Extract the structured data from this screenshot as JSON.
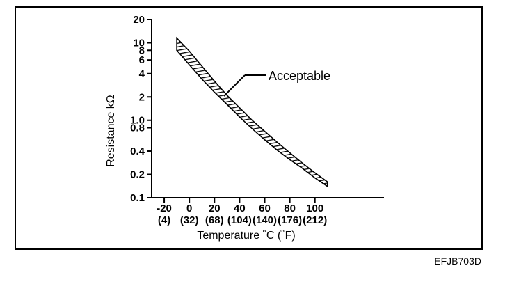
{
  "chart_data": {
    "type": "area",
    "title": "",
    "xlabel": "Temperature ˚C (˚F)",
    "ylabel": "Resistance kΩ",
    "x_scale": "linear",
    "y_scale": "log",
    "xlim": [
      -30,
      155
    ],
    "ylim": [
      0.1,
      20
    ],
    "x_ticks": [
      {
        "c": "-20",
        "f": "(4)"
      },
      {
        "c": "0",
        "f": "(32)"
      },
      {
        "c": "20",
        "f": "(68)"
      },
      {
        "c": "40",
        "f": "(104)"
      },
      {
        "c": "60",
        "f": "(140)"
      },
      {
        "c": "80",
        "f": "(176)"
      },
      {
        "c": "100",
        "f": "(212)"
      }
    ],
    "y_ticks": [
      "20",
      "10",
      "8",
      "6",
      "4",
      "2",
      "1.0",
      "0.8",
      "0.4",
      "0.2",
      "0.1"
    ],
    "y_tick_values": [
      20,
      10,
      8,
      6,
      4,
      2,
      1.0,
      0.8,
      0.4,
      0.2,
      0.1
    ],
    "series": [
      {
        "name": "Acceptable",
        "x": [
          -10,
          0,
          10,
          20,
          30,
          40,
          50,
          60,
          70,
          80,
          90,
          100,
          110
        ],
        "upper": [
          11.5,
          7.8,
          5.0,
          3.2,
          2.1,
          1.45,
          1.0,
          0.72,
          0.52,
          0.38,
          0.28,
          0.21,
          0.16
        ],
        "lower": [
          8.0,
          5.2,
          3.4,
          2.3,
          1.6,
          1.1,
          0.78,
          0.56,
          0.41,
          0.31,
          0.24,
          0.18,
          0.14
        ]
      }
    ],
    "annotations": [
      {
        "text": "Acceptable",
        "target": "Acceptable"
      }
    ],
    "grid": false,
    "legend": "none"
  },
  "figure_id": "EFJB703D"
}
